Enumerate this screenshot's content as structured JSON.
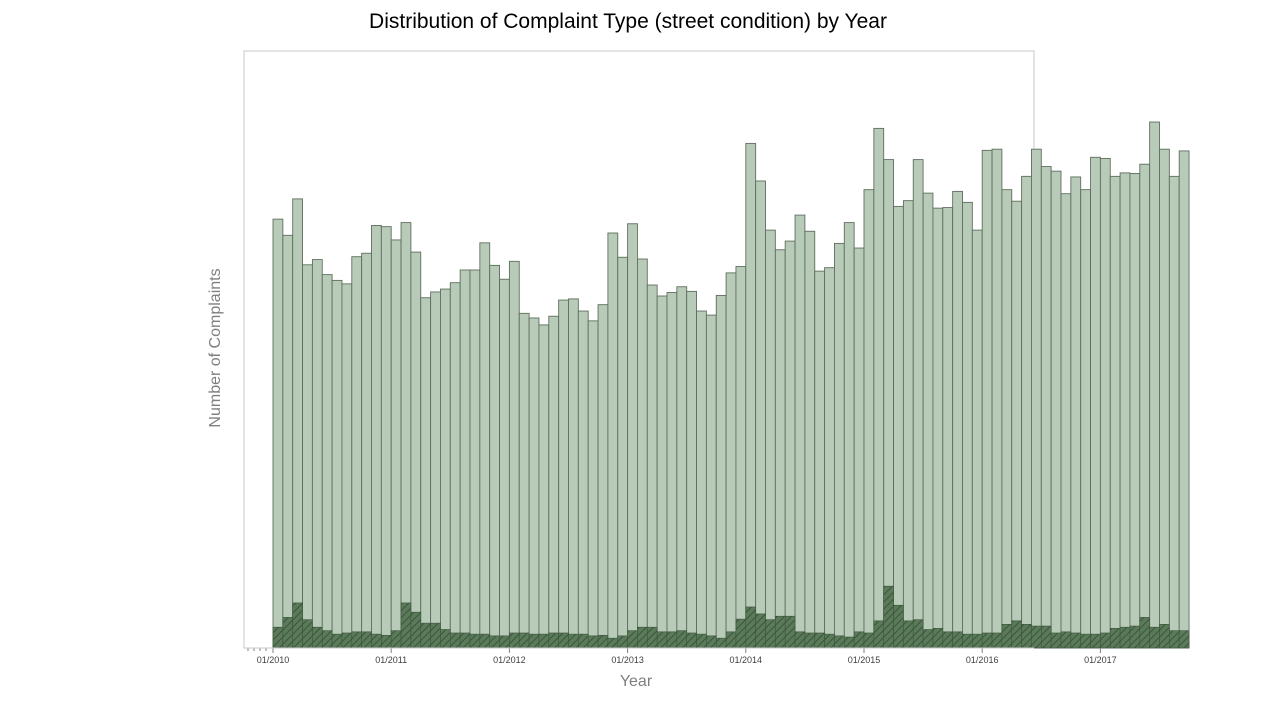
{
  "chart_data": {
    "type": "bar",
    "title": "Distribution of Complaint Type (street condition) by Year",
    "xlabel": "Year",
    "ylabel": "Number of Complaints",
    "x_start": "01/2010",
    "x_end": "12/2017",
    "x_ticks": [
      "01/2010",
      "01/2011",
      "01/2012",
      "01/2013",
      "01/2014",
      "01/2015",
      "01/2016",
      "01/2017"
    ],
    "ylim": [
      0,
      100
    ],
    "grid": false,
    "legend": "none",
    "stacked": true,
    "colors": {
      "total": "#b8cab8",
      "total_edge": "#5f6f5f",
      "highlight": "#5a7a5a",
      "highlight_edge": "#3c553c",
      "frame": "#c8c8c8"
    },
    "series": [
      {
        "values": [
          74.2,
          71.4,
          77.7,
          66.3,
          67.2,
          64.6,
          63.6,
          63.0,
          67.7,
          68.3,
          73.1,
          72.9,
          70.6,
          73.6,
          68.5,
          60.6,
          61.6,
          62.1,
          63.2,
          65.4,
          65.4,
          70.1,
          66.2,
          63.8,
          66.9,
          57.9,
          57.1,
          55.9,
          57.4,
          60.2,
          60.4,
          58.3,
          56.6,
          59.4,
          71.8,
          67.6,
          73.4,
          67.3,
          62.8,
          60.9,
          61.5,
          62.5,
          61.7,
          58.3,
          57.6,
          61.0,
          64.9,
          66.0,
          87.3,
          80.8,
          72.3,
          68.9,
          70.4,
          74.9,
          72.1,
          65.2,
          65.8,
          70.0,
          73.6,
          69.2,
          79.3,
          89.9,
          84.5,
          76.4,
          77.4,
          84.5,
          78.7,
          76.1,
          76.2,
          79.0,
          77.1,
          72.3,
          86.1,
          86.3,
          79.3,
          77.3,
          81.6,
          86.3,
          83.3,
          82.5,
          78.6,
          81.5,
          79.3,
          84.9,
          84.7,
          81.6,
          82.2,
          82.1,
          83.7,
          91.0,
          86.3,
          81.6,
          86.0
        ]
      },
      {
        "values": [
          3.6,
          5.3,
          7.8,
          4.9,
          3.6,
          3.0,
          2.4,
          2.6,
          2.8,
          2.8,
          2.4,
          2.2,
          3.0,
          7.8,
          6.2,
          4.3,
          4.3,
          3.2,
          2.6,
          2.6,
          2.4,
          2.4,
          2.1,
          2.1,
          2.6,
          2.6,
          2.4,
          2.4,
          2.6,
          2.6,
          2.4,
          2.4,
          2.1,
          2.2,
          1.7,
          2.1,
          3.0,
          3.6,
          3.6,
          2.8,
          2.8,
          3.0,
          2.6,
          2.4,
          2.1,
          1.7,
          2.8,
          5.0,
          7.1,
          5.9,
          4.9,
          5.5,
          5.5,
          2.8,
          2.6,
          2.6,
          2.4,
          2.1,
          1.9,
          2.8,
          2.6,
          4.7,
          10.7,
          7.4,
          4.7,
          4.9,
          3.2,
          3.4,
          2.8,
          2.8,
          2.4,
          2.4,
          2.6,
          2.6,
          4.1,
          4.7,
          4.1,
          3.8,
          3.8,
          2.6,
          2.8,
          2.6,
          2.4,
          2.4,
          2.6,
          3.4,
          3.6,
          3.8,
          5.3,
          3.6,
          4.1,
          3.0,
          3.0
        ]
      }
    ]
  }
}
